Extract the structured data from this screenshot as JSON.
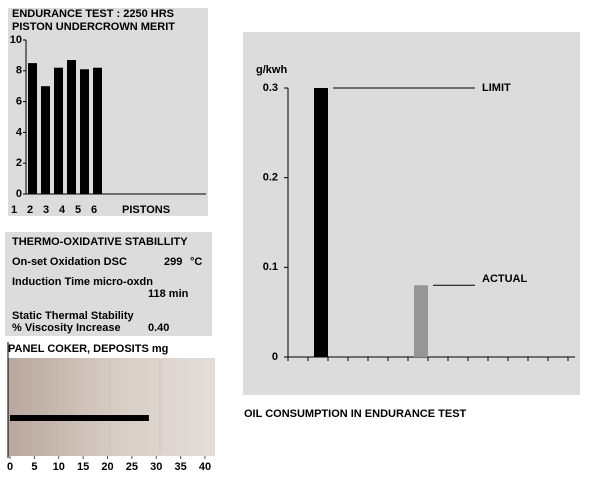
{
  "chart_data": [
    {
      "type": "bar",
      "title": "ENDURANCE TEST : 2250 HRS",
      "subtitle": "PISTON UNDERCROWN MERIT",
      "categories": [
        "1",
        "2",
        "3",
        "4",
        "5",
        "6"
      ],
      "x_label": "PISTONS",
      "values": [
        8.5,
        7.0,
        8.2,
        8.7,
        8.1,
        8.2
      ],
      "color": "#000000",
      "ylim": [
        0,
        10
      ],
      "yticks": [
        0,
        2,
        4,
        6,
        8,
        10
      ]
    },
    {
      "type": "annotated-bar",
      "y_label": "g/kwh",
      "caption": "OIL CONSUMPTION IN  ENDURANCE TEST",
      "categories": [
        "LIMIT",
        "ACTUAL"
      ],
      "values": [
        0.3,
        0.08
      ],
      "colors": [
        "#000000",
        "#969696"
      ],
      "ylim": [
        0,
        0.3
      ],
      "yticks": [
        0,
        0.1,
        0.2,
        0.3
      ]
    },
    {
      "type": "hbar",
      "title": "PANEL COKER, DEPOSITS mg",
      "categories": [
        null
      ],
      "values": [
        28.5
      ],
      "color": "#000000",
      "xlim": [
        0,
        40
      ],
      "xticks": [
        0,
        5,
        10,
        15,
        20,
        25,
        30,
        35,
        40
      ]
    }
  ],
  "panel": {
    "title": "THERMO-OXIDATIVE STABILLITY",
    "rows": [
      [
        "On-set Oxidation DSC",
        "299",
        "°C"
      ],
      [
        "Induction Time micro-oxdn",
        "118 min"
      ],
      [
        "Static Thermal Stability",
        "% Viscosity Increase",
        "0.40"
      ]
    ]
  }
}
